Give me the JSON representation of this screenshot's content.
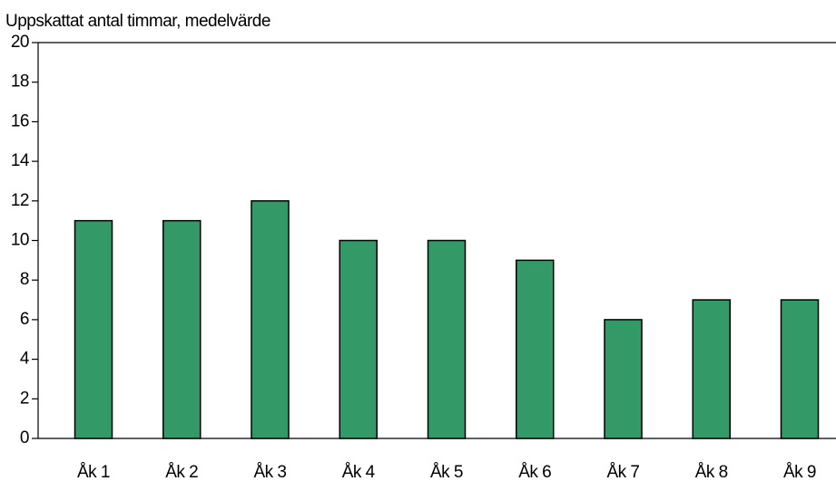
{
  "chart_data": {
    "type": "bar",
    "title": "Uppskattat antal timmar, medelvärde",
    "categories": [
      "Åk 1",
      "Åk 2",
      "Åk 3",
      "Åk 4",
      "Åk 5",
      "Åk 6",
      "Åk 7",
      "Åk 8",
      "Åk 9"
    ],
    "values": [
      11,
      11,
      12,
      10,
      10,
      9,
      6,
      7,
      7
    ],
    "color": "#339966",
    "ylim": [
      0,
      20
    ],
    "yticks": [
      0,
      2,
      4,
      6,
      8,
      10,
      12,
      14,
      16,
      18,
      20
    ],
    "grid": false
  }
}
